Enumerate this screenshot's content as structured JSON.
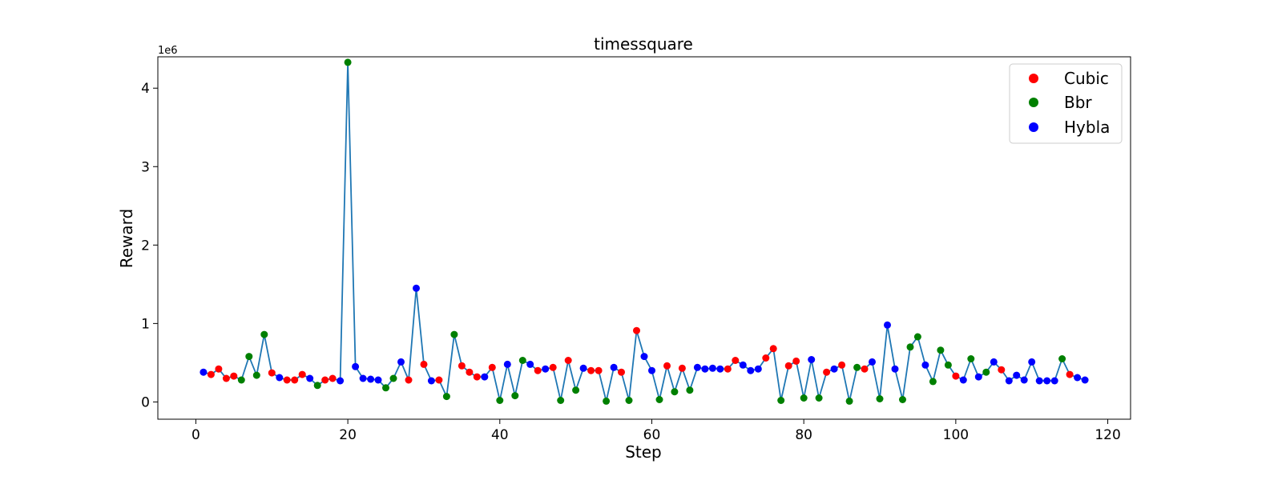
{
  "chart_data": {
    "type": "line",
    "title": "timessquare",
    "xlabel": "Step",
    "ylabel": "Reward",
    "y_offset_label": "1e6",
    "xlim": [
      -5,
      123
    ],
    "ylim": [
      -0.22,
      4.4
    ],
    "xticks": [
      0,
      20,
      40,
      60,
      80,
      100,
      120
    ],
    "yticks": [
      0,
      1,
      2,
      3,
      4
    ],
    "line_color": "#1f77b4",
    "legend": {
      "placement": "top-right",
      "entries": [
        {
          "name": "Cubic",
          "color": "#ff0000"
        },
        {
          "name": "Bbr",
          "color": "#008000"
        },
        {
          "name": "Hybla",
          "color": "#0000ff"
        }
      ]
    },
    "points": [
      {
        "x": 1,
        "y": 0.38,
        "algo": "Hybla"
      },
      {
        "x": 2,
        "y": 0.35,
        "algo": "Cubic"
      },
      {
        "x": 3,
        "y": 0.42,
        "algo": "Cubic"
      },
      {
        "x": 4,
        "y": 0.3,
        "algo": "Cubic"
      },
      {
        "x": 5,
        "y": 0.33,
        "algo": "Cubic"
      },
      {
        "x": 6,
        "y": 0.28,
        "algo": "Bbr"
      },
      {
        "x": 7,
        "y": 0.58,
        "algo": "Bbr"
      },
      {
        "x": 8,
        "y": 0.34,
        "algo": "Bbr"
      },
      {
        "x": 9,
        "y": 0.86,
        "algo": "Bbr"
      },
      {
        "x": 10,
        "y": 0.37,
        "algo": "Cubic"
      },
      {
        "x": 11,
        "y": 0.31,
        "algo": "Hybla"
      },
      {
        "x": 12,
        "y": 0.28,
        "algo": "Cubic"
      },
      {
        "x": 13,
        "y": 0.28,
        "algo": "Cubic"
      },
      {
        "x": 14,
        "y": 0.35,
        "algo": "Cubic"
      },
      {
        "x": 15,
        "y": 0.3,
        "algo": "Hybla"
      },
      {
        "x": 16,
        "y": 0.21,
        "algo": "Bbr"
      },
      {
        "x": 17,
        "y": 0.28,
        "algo": "Cubic"
      },
      {
        "x": 18,
        "y": 0.3,
        "algo": "Cubic"
      },
      {
        "x": 19,
        "y": 0.27,
        "algo": "Hybla"
      },
      {
        "x": 20,
        "y": 4.33,
        "algo": "Bbr"
      },
      {
        "x": 21,
        "y": 0.45,
        "algo": "Hybla"
      },
      {
        "x": 22,
        "y": 0.3,
        "algo": "Hybla"
      },
      {
        "x": 23,
        "y": 0.29,
        "algo": "Hybla"
      },
      {
        "x": 24,
        "y": 0.28,
        "algo": "Hybla"
      },
      {
        "x": 25,
        "y": 0.18,
        "algo": "Bbr"
      },
      {
        "x": 26,
        "y": 0.3,
        "algo": "Bbr"
      },
      {
        "x": 27,
        "y": 0.51,
        "algo": "Hybla"
      },
      {
        "x": 28,
        "y": 0.28,
        "algo": "Cubic"
      },
      {
        "x": 29,
        "y": 1.45,
        "algo": "Hybla"
      },
      {
        "x": 30,
        "y": 0.48,
        "algo": "Cubic"
      },
      {
        "x": 31,
        "y": 0.27,
        "algo": "Hybla"
      },
      {
        "x": 32,
        "y": 0.28,
        "algo": "Cubic"
      },
      {
        "x": 33,
        "y": 0.07,
        "algo": "Bbr"
      },
      {
        "x": 34,
        "y": 0.86,
        "algo": "Bbr"
      },
      {
        "x": 35,
        "y": 0.46,
        "algo": "Cubic"
      },
      {
        "x": 36,
        "y": 0.38,
        "algo": "Cubic"
      },
      {
        "x": 37,
        "y": 0.32,
        "algo": "Cubic"
      },
      {
        "x": 38,
        "y": 0.32,
        "algo": "Hybla"
      },
      {
        "x": 39,
        "y": 0.44,
        "algo": "Cubic"
      },
      {
        "x": 40,
        "y": 0.02,
        "algo": "Bbr"
      },
      {
        "x": 41,
        "y": 0.48,
        "algo": "Hybla"
      },
      {
        "x": 42,
        "y": 0.08,
        "algo": "Bbr"
      },
      {
        "x": 43,
        "y": 0.53,
        "algo": "Bbr"
      },
      {
        "x": 44,
        "y": 0.48,
        "algo": "Hybla"
      },
      {
        "x": 45,
        "y": 0.4,
        "algo": "Cubic"
      },
      {
        "x": 46,
        "y": 0.42,
        "algo": "Hybla"
      },
      {
        "x": 47,
        "y": 0.44,
        "algo": "Cubic"
      },
      {
        "x": 48,
        "y": 0.02,
        "algo": "Bbr"
      },
      {
        "x": 49,
        "y": 0.53,
        "algo": "Cubic"
      },
      {
        "x": 50,
        "y": 0.15,
        "algo": "Bbr"
      },
      {
        "x": 51,
        "y": 0.43,
        "algo": "Hybla"
      },
      {
        "x": 52,
        "y": 0.4,
        "algo": "Cubic"
      },
      {
        "x": 53,
        "y": 0.4,
        "algo": "Cubic"
      },
      {
        "x": 54,
        "y": 0.01,
        "algo": "Bbr"
      },
      {
        "x": 55,
        "y": 0.44,
        "algo": "Hybla"
      },
      {
        "x": 56,
        "y": 0.38,
        "algo": "Cubic"
      },
      {
        "x": 57,
        "y": 0.02,
        "algo": "Bbr"
      },
      {
        "x": 58,
        "y": 0.91,
        "algo": "Cubic"
      },
      {
        "x": 59,
        "y": 0.58,
        "algo": "Hybla"
      },
      {
        "x": 60,
        "y": 0.4,
        "algo": "Hybla"
      },
      {
        "x": 61,
        "y": 0.03,
        "algo": "Bbr"
      },
      {
        "x": 62,
        "y": 0.46,
        "algo": "Cubic"
      },
      {
        "x": 63,
        "y": 0.13,
        "algo": "Bbr"
      },
      {
        "x": 64,
        "y": 0.43,
        "algo": "Cubic"
      },
      {
        "x": 65,
        "y": 0.15,
        "algo": "Bbr"
      },
      {
        "x": 66,
        "y": 0.44,
        "algo": "Hybla"
      },
      {
        "x": 67,
        "y": 0.42,
        "algo": "Hybla"
      },
      {
        "x": 68,
        "y": 0.43,
        "algo": "Hybla"
      },
      {
        "x": 69,
        "y": 0.42,
        "algo": "Hybla"
      },
      {
        "x": 70,
        "y": 0.42,
        "algo": "Cubic"
      },
      {
        "x": 71,
        "y": 0.53,
        "algo": "Cubic"
      },
      {
        "x": 72,
        "y": 0.47,
        "algo": "Hybla"
      },
      {
        "x": 73,
        "y": 0.4,
        "algo": "Hybla"
      },
      {
        "x": 74,
        "y": 0.42,
        "algo": "Hybla"
      },
      {
        "x": 75,
        "y": 0.56,
        "algo": "Cubic"
      },
      {
        "x": 76,
        "y": 0.68,
        "algo": "Cubic"
      },
      {
        "x": 77,
        "y": 0.02,
        "algo": "Bbr"
      },
      {
        "x": 78,
        "y": 0.46,
        "algo": "Cubic"
      },
      {
        "x": 79,
        "y": 0.52,
        "algo": "Cubic"
      },
      {
        "x": 80,
        "y": 0.05,
        "algo": "Bbr"
      },
      {
        "x": 81,
        "y": 0.54,
        "algo": "Hybla"
      },
      {
        "x": 82,
        "y": 0.05,
        "algo": "Bbr"
      },
      {
        "x": 83,
        "y": 0.38,
        "algo": "Cubic"
      },
      {
        "x": 84,
        "y": 0.42,
        "algo": "Hybla"
      },
      {
        "x": 85,
        "y": 0.47,
        "algo": "Cubic"
      },
      {
        "x": 86,
        "y": 0.01,
        "algo": "Bbr"
      },
      {
        "x": 87,
        "y": 0.44,
        "algo": "Bbr"
      },
      {
        "x": 88,
        "y": 0.42,
        "algo": "Cubic"
      },
      {
        "x": 89,
        "y": 0.51,
        "algo": "Hybla"
      },
      {
        "x": 90,
        "y": 0.04,
        "algo": "Bbr"
      },
      {
        "x": 91,
        "y": 0.98,
        "algo": "Hybla"
      },
      {
        "x": 92,
        "y": 0.42,
        "algo": "Hybla"
      },
      {
        "x": 93,
        "y": 0.03,
        "algo": "Bbr"
      },
      {
        "x": 94,
        "y": 0.7,
        "algo": "Bbr"
      },
      {
        "x": 95,
        "y": 0.83,
        "algo": "Bbr"
      },
      {
        "x": 96,
        "y": 0.47,
        "algo": "Hybla"
      },
      {
        "x": 97,
        "y": 0.26,
        "algo": "Bbr"
      },
      {
        "x": 98,
        "y": 0.66,
        "algo": "Bbr"
      },
      {
        "x": 99,
        "y": 0.47,
        "algo": "Bbr"
      },
      {
        "x": 100,
        "y": 0.33,
        "algo": "Cubic"
      },
      {
        "x": 101,
        "y": 0.28,
        "algo": "Hybla"
      },
      {
        "x": 102,
        "y": 0.55,
        "algo": "Bbr"
      },
      {
        "x": 103,
        "y": 0.32,
        "algo": "Hybla"
      },
      {
        "x": 104,
        "y": 0.38,
        "algo": "Bbr"
      },
      {
        "x": 105,
        "y": 0.51,
        "algo": "Hybla"
      },
      {
        "x": 106,
        "y": 0.41,
        "algo": "Cubic"
      },
      {
        "x": 107,
        "y": 0.27,
        "algo": "Hybla"
      },
      {
        "x": 108,
        "y": 0.34,
        "algo": "Hybla"
      },
      {
        "x": 109,
        "y": 0.28,
        "algo": "Hybla"
      },
      {
        "x": 110,
        "y": 0.51,
        "algo": "Hybla"
      },
      {
        "x": 111,
        "y": 0.27,
        "algo": "Hybla"
      },
      {
        "x": 112,
        "y": 0.27,
        "algo": "Hybla"
      },
      {
        "x": 113,
        "y": 0.27,
        "algo": "Hybla"
      },
      {
        "x": 114,
        "y": 0.55,
        "algo": "Bbr"
      },
      {
        "x": 115,
        "y": 0.35,
        "algo": "Cubic"
      },
      {
        "x": 116,
        "y": 0.31,
        "algo": "Hybla"
      },
      {
        "x": 117,
        "y": 0.28,
        "algo": "Hybla"
      }
    ]
  }
}
